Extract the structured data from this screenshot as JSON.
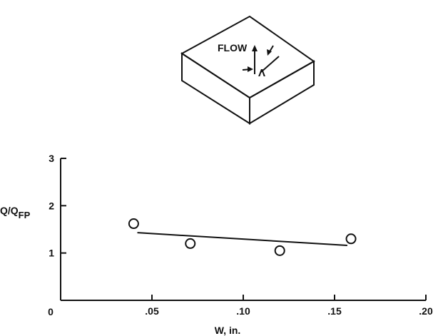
{
  "diagram": {
    "flow_label": "FLOW",
    "angle_symbol": "Λ"
  },
  "chart_data": {
    "type": "scatter",
    "title": "",
    "xlabel": "W, in.",
    "ylabel": "Q/Q",
    "ylabel_subscript": "FP",
    "xlim": [
      0,
      0.2
    ],
    "ylim": [
      0,
      3
    ],
    "x_ticks": [
      0.05,
      0.1,
      0.15,
      0.2
    ],
    "x_tick_labels": [
      ".05",
      ".10",
      ".15",
      ".20"
    ],
    "y_ticks": [
      1,
      2,
      3
    ],
    "y_tick_labels": [
      "1",
      "2",
      "3"
    ],
    "origin_label": "0",
    "grid": false,
    "points": [
      {
        "x": 0.04,
        "y": 1.62
      },
      {
        "x": 0.071,
        "y": 1.2
      },
      {
        "x": 0.12,
        "y": 1.05
      },
      {
        "x": 0.159,
        "y": 1.3
      }
    ],
    "fit_line": {
      "x": [
        0.042,
        0.157
      ],
      "y": [
        1.43,
        1.16
      ]
    },
    "colors": {
      "ink": "#111111",
      "background": "#ffffff"
    }
  }
}
